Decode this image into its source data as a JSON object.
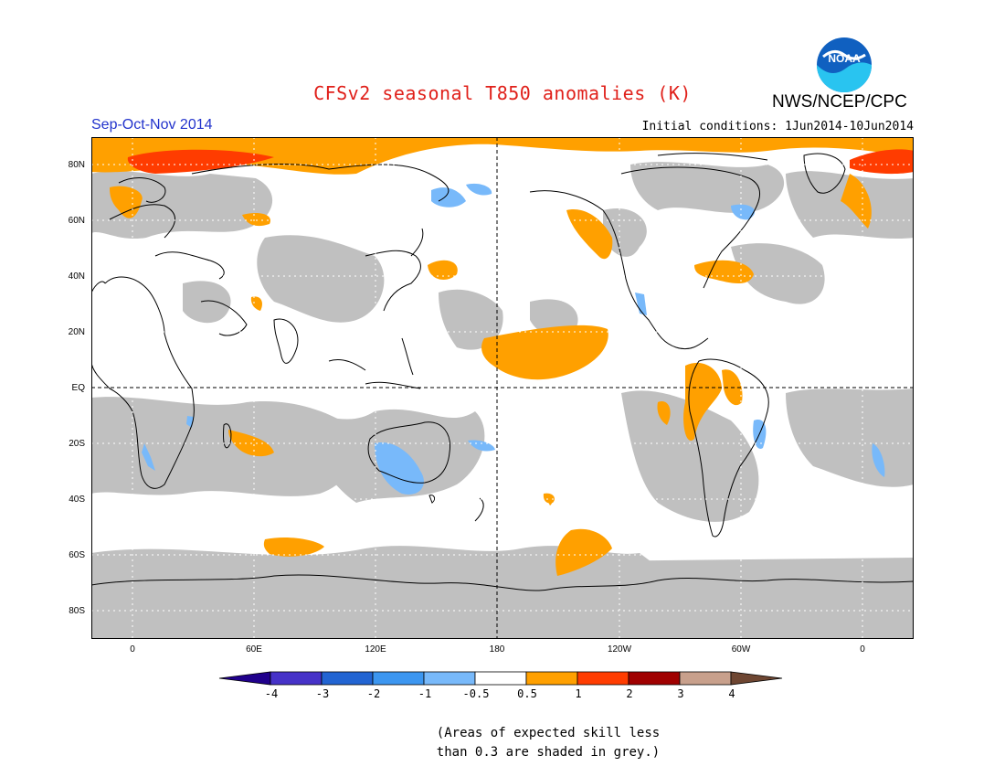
{
  "header": {
    "title": "CFSv2 seasonal T850 anomalies (K)",
    "agency": "NWS/NCEP/CPC",
    "period": "Sep-Oct-Nov 2014",
    "initial_conditions": "Initial conditions: 1Jun2014-10Jun2014",
    "logo_text": "NOAA"
  },
  "map": {
    "lat_labels": [
      "80N",
      "60N",
      "40N",
      "20N",
      "EQ",
      "20S",
      "40S",
      "60S",
      "80S"
    ],
    "lon_labels": [
      "0",
      "60E",
      "120E",
      "180",
      "120W",
      "60W",
      "0"
    ],
    "projection": "equirectangular, centered at 180",
    "ocean_color": "#ffffff",
    "skill_mask_color": "#c0c0c0",
    "coast_color": "#000000"
  },
  "legend": {
    "colors": [
      "#20008c",
      "#4632c8",
      "#2264d2",
      "#3c96f0",
      "#78b9fa",
      "#ffffff",
      "#ffa000",
      "#ff3c00",
      "#a00000",
      "#c8a08c",
      "#6e4632"
    ],
    "labels": [
      "-4",
      "-3",
      "-2",
      "-1",
      "-0.5",
      "0.5",
      "1",
      "2",
      "3",
      "4"
    ]
  },
  "footnote": {
    "line1": "(Areas of expected skill less",
    "line2": "than 0.3 are shaded in grey.)"
  }
}
